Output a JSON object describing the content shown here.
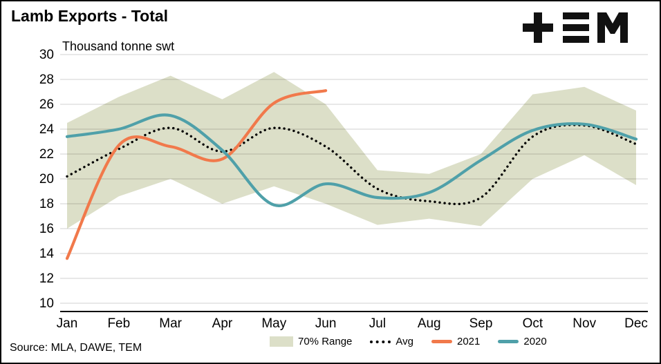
{
  "title": "Lamb Exports - Total",
  "subtitle": "Thousand tonne swt",
  "source": "Source: MLA, DAWE, TEM",
  "logo_name": "TEM",
  "colors": {
    "band": "#dcdfc8",
    "avg": "#000000",
    "series_2021": "#f1794b",
    "series_2020": "#4fa0a9",
    "grid": "#d9d9d9",
    "axis": "#000000",
    "text": "#000000"
  },
  "chart_data": {
    "type": "line",
    "title": "Lamb Exports - Total",
    "ylabel": "Thousand tonne swt",
    "xlabel": "",
    "grid": true,
    "legend_position": "bottom",
    "ylim": [
      10,
      30
    ],
    "yticks": [
      10,
      12,
      14,
      16,
      18,
      20,
      22,
      24,
      26,
      28,
      30
    ],
    "categories": [
      "Jan",
      "Feb",
      "Mar",
      "Apr",
      "May",
      "Jun",
      "Jul",
      "Aug",
      "Sep",
      "Oct",
      "Nov",
      "Dec"
    ],
    "series": [
      {
        "name": "70% Range",
        "type": "band",
        "color": "#dcdfc8",
        "upper": [
          24.5,
          26.6,
          28.3,
          26.4,
          28.6,
          26.0,
          20.7,
          20.4,
          22.0,
          26.8,
          27.4,
          25.5
        ],
        "lower": [
          16.0,
          18.6,
          20.0,
          18.0,
          19.4,
          18.0,
          16.3,
          16.8,
          16.2,
          20.0,
          21.9,
          19.5
        ]
      },
      {
        "name": "Avg",
        "type": "dotted",
        "color": "#000000",
        "values": [
          20.2,
          22.4,
          24.1,
          22.2,
          24.1,
          22.6,
          19.2,
          18.2,
          18.5,
          23.4,
          24.3,
          22.8
        ]
      },
      {
        "name": "2021",
        "type": "line",
        "color": "#f1794b",
        "values": [
          13.6,
          22.7,
          22.6,
          21.6,
          26.1,
          27.1
        ]
      },
      {
        "name": "2020",
        "type": "line",
        "color": "#4fa0a9",
        "values": [
          23.4,
          24.0,
          25.1,
          22.3,
          17.9,
          19.6,
          18.5,
          18.9,
          21.5,
          23.9,
          24.4,
          23.2
        ]
      }
    ]
  }
}
